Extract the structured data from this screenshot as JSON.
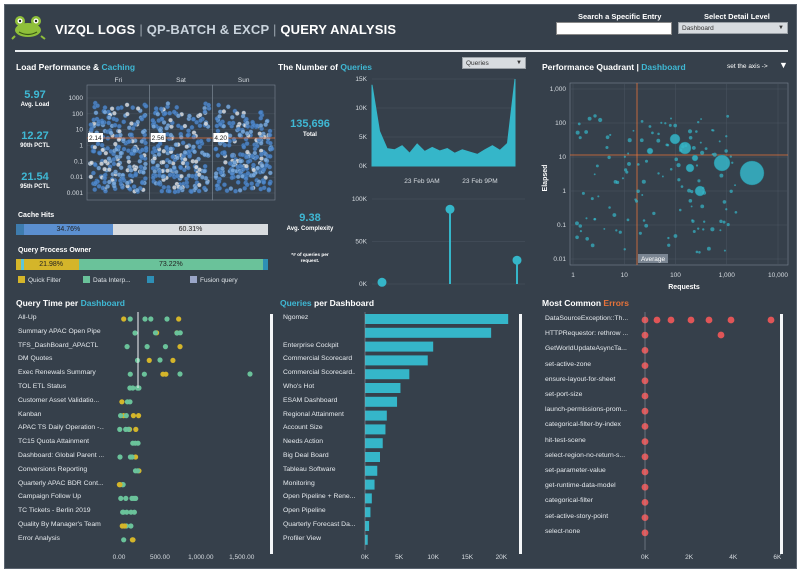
{
  "header": {
    "title_main": "VIZQL LOGS",
    "title_sep": "|",
    "title_part2": "QP-BATCH & EXCP",
    "title_part3": "QUERY ANALYSIS",
    "search_label": "Search a Specific Entry",
    "search_value": "",
    "detail_label": "Select Detail Level",
    "detail_value": "Dashboard",
    "logo_icon": "frog-logo-icon"
  },
  "load_perf": {
    "title_a": "Load Performance &",
    "title_b": "Caching",
    "days": [
      "Fri",
      "Sat",
      "Sun"
    ],
    "y_ticks": [
      "1000",
      "100",
      "10",
      "1",
      "0.1",
      "0.01",
      "0.001"
    ],
    "day_labels": [
      "2.14",
      "2.56",
      "4.20"
    ],
    "metrics": [
      {
        "value": "5.97",
        "label": "Avg. Load"
      },
      {
        "value": "12.27",
        "label": "90th PCTL"
      },
      {
        "value": "21.54",
        "label": "95th PCTL"
      }
    ]
  },
  "cache_hits": {
    "title": "Cache Hits",
    "segments": [
      {
        "pct": "",
        "color": "#3e7cae",
        "frac": 0.03
      },
      {
        "pct": "34.76%",
        "color": "#5b8fd0",
        "frac": 0.3476
      },
      {
        "pct": "60.31%",
        "color": "#d9dcdf",
        "frac": 0.6031
      }
    ]
  },
  "query_owner": {
    "title": "Query Process Owner",
    "segments": [
      {
        "pct": "",
        "color": "#d4b52a",
        "frac": 0.02
      },
      {
        "pct": "",
        "color": "#5ec6d8",
        "frac": 0.01
      },
      {
        "pct": "21.98%",
        "color": "#d4b52a",
        "frac": 0.2198
      },
      {
        "pct": "73.22%",
        "color": "#6ac29a",
        "frac": 0.7322
      },
      {
        "pct": "",
        "color": "#2e8fb5",
        "frac": 0.02
      }
    ],
    "legend": [
      {
        "label": "Quick Filter",
        "color": "#d4b52a"
      },
      {
        "label": "Data Interp...",
        "color": "#6ac29a"
      },
      {
        "label": "",
        "color": "#2e8fb5"
      },
      {
        "label": "Fusion query",
        "color": "#9aa6c8"
      }
    ]
  },
  "num_queries": {
    "title_a": "The Number of",
    "title_b": "Queries",
    "dropdown": "Queries",
    "total_value": "135,696",
    "total_label": "Total",
    "complexity_value": "9.38",
    "complexity_label": "Avg. Complexity",
    "note": "*# of queries per request.",
    "area_y_ticks": [
      "15K",
      "10K",
      "5K",
      "0K"
    ],
    "area_x_ticks": [
      "23 Feb 9AM",
      "23 Feb 9PM"
    ],
    "lolli_y_ticks": [
      "100K",
      "50K",
      "0K"
    ]
  },
  "quadrant": {
    "title_a": "Performance Quadrant",
    "title_sep": "|",
    "title_b": "Dashboard",
    "set_axis": "set the axis ->",
    "y_ticks": [
      "1,000",
      "100",
      "10",
      "1",
      "0.1",
      "0.01"
    ],
    "x_ticks": [
      "1",
      "10",
      "100",
      "1,000",
      "10,000"
    ],
    "ylabel": "Elapsed",
    "xlabel": "Requests",
    "average_label": "Average"
  },
  "qtime": {
    "title_a": "Query Time per",
    "title_b": "Dashboard",
    "rows": [
      "All-Up",
      "Summary APAC Open Pipe",
      "TFS_DashBoard_APACTL",
      "DM Quotes",
      "Exec Renewals Summary",
      "TOL ETL Status",
      "Customer Asset Validatio...",
      "Kanban",
      "APAC TS Daily Operation -...",
      "TC15 Quota Attainment",
      "Dashboard: Global Parent ...",
      "Conversions Reporting",
      "Quarterly APAC BDR Cont...",
      "Campaign Follow Up",
      "TC Tickets - Berlin 2019",
      "Quality By Manager's Team",
      "Error Analysis"
    ],
    "x_ticks": [
      "0.00",
      "500.00",
      "1,000.00",
      "1,500.00"
    ]
  },
  "qpd": {
    "title_a": "Queries",
    "title_b": "per Dashboard",
    "rows": [
      {
        "label": "Ngomez",
        "value": 21000
      },
      {
        "label": "",
        "value": 18500
      },
      {
        "label": "Enterprise Cockpit",
        "value": 10000
      },
      {
        "label": "Commercial Scorecard",
        "value": 9200
      },
      {
        "label": "Commercial Scorecard...",
        "value": 6500
      },
      {
        "label": "Who's Hot",
        "value": 5200
      },
      {
        "label": "ESAM Dashboard",
        "value": 4700
      },
      {
        "label": "Regional Attainment",
        "value": 3200
      },
      {
        "label": "Account Size",
        "value": 3000
      },
      {
        "label": "Needs Action",
        "value": 2600
      },
      {
        "label": "Big Deal Board",
        "value": 2200
      },
      {
        "label": "Tableau Software",
        "value": 1800
      },
      {
        "label": "Monitoring",
        "value": 1400
      },
      {
        "label": "Open Pipeline + Rene...",
        "value": 1000
      },
      {
        "label": "Open Pipeline",
        "value": 800
      },
      {
        "label": "Quarterly Forecast Da...",
        "value": 600
      },
      {
        "label": "Profiler View",
        "value": 400
      }
    ],
    "x_ticks": [
      "0K",
      "5K",
      "10K",
      "15K",
      "20K"
    ],
    "bar_color": "#35b6c9"
  },
  "errors": {
    "title_a": "Most Common",
    "title_b": "Errors",
    "rows": [
      "DataSourceException::Th...",
      "HTTPRequestor: rethrow ...",
      "GetWorldUpdateAsyncTa...",
      "set-active-zone",
      "ensure-layout-for-sheet",
      "set-port-size",
      "launch-permissions-prom...",
      "categorical-filter-by-index",
      "hit-test-scene",
      "select-region-no-return-s...",
      "set-parameter-value",
      "get-runtime-data-model",
      "categorical-filter",
      "set-active-story-point",
      "select-none"
    ],
    "x_ticks": [
      "0K",
      "2K",
      "4K",
      "6K"
    ],
    "dot_color": "#e05557"
  }
}
